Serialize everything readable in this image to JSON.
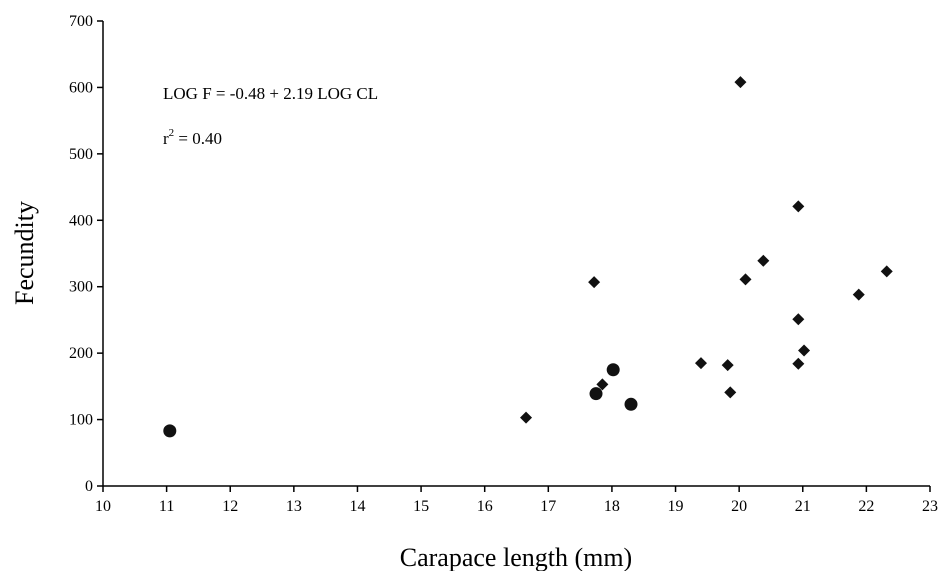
{
  "chart_data": {
    "type": "scatter",
    "title": "",
    "xlabel": "Carapace length  (mm)",
    "ylabel": "Fecundity",
    "xlim": [
      10,
      23
    ],
    "ylim": [
      0,
      700
    ],
    "xticks": [
      10,
      11,
      12,
      13,
      14,
      15,
      16,
      17,
      18,
      19,
      20,
      21,
      22,
      23
    ],
    "yticks": [
      0,
      100,
      200,
      300,
      400,
      500,
      600,
      700
    ],
    "grid": false,
    "annotations": {
      "equation": "LOG F = -0.48 + 2.19 LOG CL",
      "r2_base": "r",
      "r2_sup": "2",
      "r2_rest": " = 0.40"
    },
    "series": [
      {
        "marker": "diamond",
        "points": [
          {
            "x": 16.65,
            "y": 103
          },
          {
            "x": 17.72,
            "y": 307
          },
          {
            "x": 17.85,
            "y": 153
          },
          {
            "x": 19.4,
            "y": 185
          },
          {
            "x": 19.82,
            "y": 182
          },
          {
            "x": 19.86,
            "y": 141
          },
          {
            "x": 20.02,
            "y": 608
          },
          {
            "x": 20.1,
            "y": 311
          },
          {
            "x": 20.38,
            "y": 339
          },
          {
            "x": 20.93,
            "y": 421
          },
          {
            "x": 20.93,
            "y": 251
          },
          {
            "x": 20.93,
            "y": 184
          },
          {
            "x": 21.02,
            "y": 204
          },
          {
            "x": 21.88,
            "y": 288
          },
          {
            "x": 22.32,
            "y": 323
          }
        ]
      },
      {
        "marker": "circle",
        "points": [
          {
            "x": 11.05,
            "y": 83
          },
          {
            "x": 17.75,
            "y": 139
          },
          {
            "x": 18.02,
            "y": 175
          },
          {
            "x": 18.3,
            "y": 123
          }
        ]
      }
    ]
  }
}
